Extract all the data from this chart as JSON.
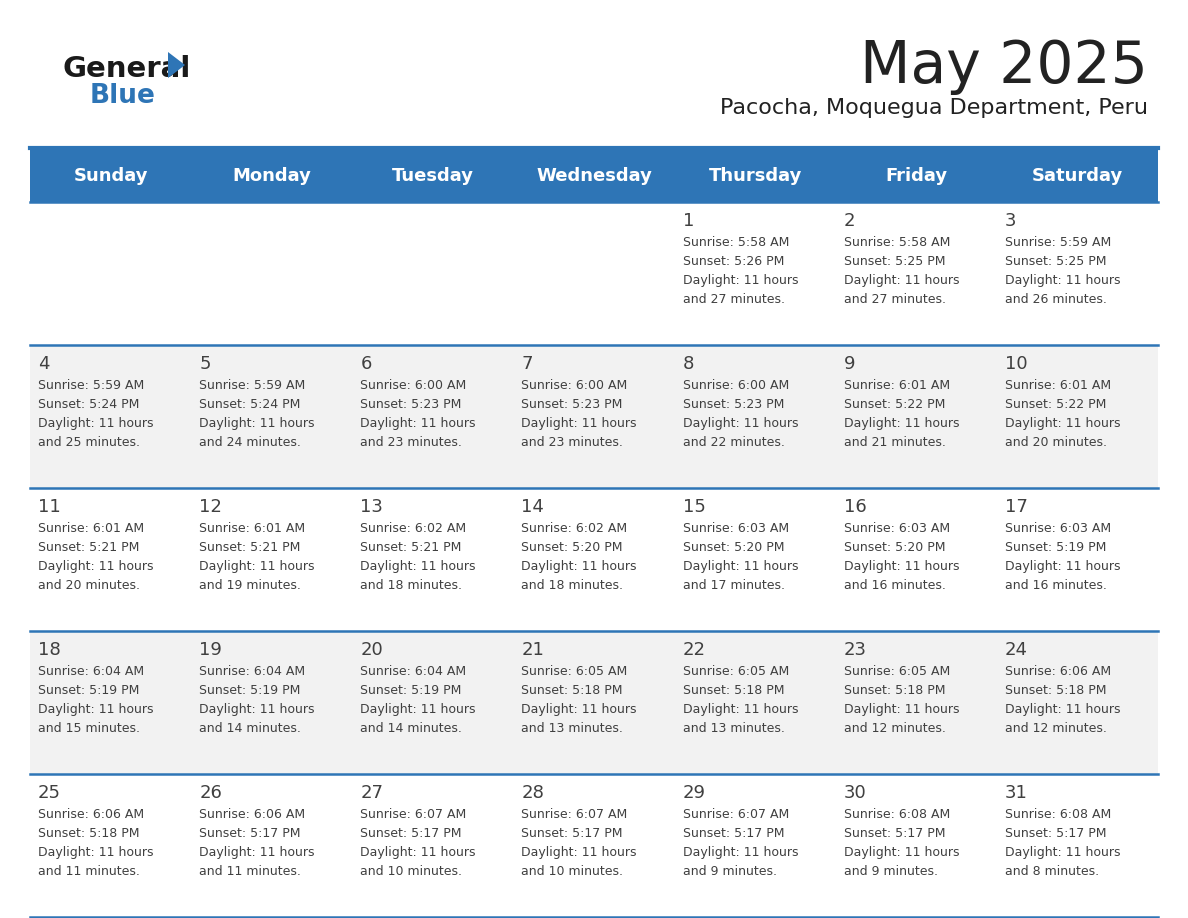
{
  "title": "May 2025",
  "subtitle": "Pacocha, Moquegua Department, Peru",
  "header_color": "#2E75B6",
  "header_text_color": "#FFFFFF",
  "days_of_week": [
    "Sunday",
    "Monday",
    "Tuesday",
    "Wednesday",
    "Thursday",
    "Friday",
    "Saturday"
  ],
  "background_color": "#FFFFFF",
  "cell_bg_row0": "#FFFFFF",
  "cell_bg_row1": "#F2F2F2",
  "cell_bg_row2": "#FFFFFF",
  "cell_bg_row3": "#F2F2F2",
  "cell_bg_row4": "#FFFFFF",
  "separator_color": "#2E75B6",
  "text_color": "#404040",
  "title_color": "#222222",
  "logo_general_color": "#1a1a1a",
  "logo_blue_color": "#2E75B6",
  "calendar_data": [
    [
      null,
      null,
      null,
      null,
      {
        "day": 1,
        "sunrise": "5:58 AM",
        "sunset": "5:26 PM",
        "daylight_hours": 11,
        "daylight_minutes": 27
      },
      {
        "day": 2,
        "sunrise": "5:58 AM",
        "sunset": "5:25 PM",
        "daylight_hours": 11,
        "daylight_minutes": 27
      },
      {
        "day": 3,
        "sunrise": "5:59 AM",
        "sunset": "5:25 PM",
        "daylight_hours": 11,
        "daylight_minutes": 26
      }
    ],
    [
      {
        "day": 4,
        "sunrise": "5:59 AM",
        "sunset": "5:24 PM",
        "daylight_hours": 11,
        "daylight_minutes": 25
      },
      {
        "day": 5,
        "sunrise": "5:59 AM",
        "sunset": "5:24 PM",
        "daylight_hours": 11,
        "daylight_minutes": 24
      },
      {
        "day": 6,
        "sunrise": "6:00 AM",
        "sunset": "5:23 PM",
        "daylight_hours": 11,
        "daylight_minutes": 23
      },
      {
        "day": 7,
        "sunrise": "6:00 AM",
        "sunset": "5:23 PM",
        "daylight_hours": 11,
        "daylight_minutes": 23
      },
      {
        "day": 8,
        "sunrise": "6:00 AM",
        "sunset": "5:23 PM",
        "daylight_hours": 11,
        "daylight_minutes": 22
      },
      {
        "day": 9,
        "sunrise": "6:01 AM",
        "sunset": "5:22 PM",
        "daylight_hours": 11,
        "daylight_minutes": 21
      },
      {
        "day": 10,
        "sunrise": "6:01 AM",
        "sunset": "5:22 PM",
        "daylight_hours": 11,
        "daylight_minutes": 20
      }
    ],
    [
      {
        "day": 11,
        "sunrise": "6:01 AM",
        "sunset": "5:21 PM",
        "daylight_hours": 11,
        "daylight_minutes": 20
      },
      {
        "day": 12,
        "sunrise": "6:01 AM",
        "sunset": "5:21 PM",
        "daylight_hours": 11,
        "daylight_minutes": 19
      },
      {
        "day": 13,
        "sunrise": "6:02 AM",
        "sunset": "5:21 PM",
        "daylight_hours": 11,
        "daylight_minutes": 18
      },
      {
        "day": 14,
        "sunrise": "6:02 AM",
        "sunset": "5:20 PM",
        "daylight_hours": 11,
        "daylight_minutes": 18
      },
      {
        "day": 15,
        "sunrise": "6:03 AM",
        "sunset": "5:20 PM",
        "daylight_hours": 11,
        "daylight_minutes": 17
      },
      {
        "day": 16,
        "sunrise": "6:03 AM",
        "sunset": "5:20 PM",
        "daylight_hours": 11,
        "daylight_minutes": 16
      },
      {
        "day": 17,
        "sunrise": "6:03 AM",
        "sunset": "5:19 PM",
        "daylight_hours": 11,
        "daylight_minutes": 16
      }
    ],
    [
      {
        "day": 18,
        "sunrise": "6:04 AM",
        "sunset": "5:19 PM",
        "daylight_hours": 11,
        "daylight_minutes": 15
      },
      {
        "day": 19,
        "sunrise": "6:04 AM",
        "sunset": "5:19 PM",
        "daylight_hours": 11,
        "daylight_minutes": 14
      },
      {
        "day": 20,
        "sunrise": "6:04 AM",
        "sunset": "5:19 PM",
        "daylight_hours": 11,
        "daylight_minutes": 14
      },
      {
        "day": 21,
        "sunrise": "6:05 AM",
        "sunset": "5:18 PM",
        "daylight_hours": 11,
        "daylight_minutes": 13
      },
      {
        "day": 22,
        "sunrise": "6:05 AM",
        "sunset": "5:18 PM",
        "daylight_hours": 11,
        "daylight_minutes": 13
      },
      {
        "day": 23,
        "sunrise": "6:05 AM",
        "sunset": "5:18 PM",
        "daylight_hours": 11,
        "daylight_minutes": 12
      },
      {
        "day": 24,
        "sunrise": "6:06 AM",
        "sunset": "5:18 PM",
        "daylight_hours": 11,
        "daylight_minutes": 12
      }
    ],
    [
      {
        "day": 25,
        "sunrise": "6:06 AM",
        "sunset": "5:18 PM",
        "daylight_hours": 11,
        "daylight_minutes": 11
      },
      {
        "day": 26,
        "sunrise": "6:06 AM",
        "sunset": "5:17 PM",
        "daylight_hours": 11,
        "daylight_minutes": 11
      },
      {
        "day": 27,
        "sunrise": "6:07 AM",
        "sunset": "5:17 PM",
        "daylight_hours": 11,
        "daylight_minutes": 10
      },
      {
        "day": 28,
        "sunrise": "6:07 AM",
        "sunset": "5:17 PM",
        "daylight_hours": 11,
        "daylight_minutes": 10
      },
      {
        "day": 29,
        "sunrise": "6:07 AM",
        "sunset": "5:17 PM",
        "daylight_hours": 11,
        "daylight_minutes": 9
      },
      {
        "day": 30,
        "sunrise": "6:08 AM",
        "sunset": "5:17 PM",
        "daylight_hours": 11,
        "daylight_minutes": 9
      },
      {
        "day": 31,
        "sunrise": "6:08 AM",
        "sunset": "5:17 PM",
        "daylight_hours": 11,
        "daylight_minutes": 8
      }
    ]
  ]
}
